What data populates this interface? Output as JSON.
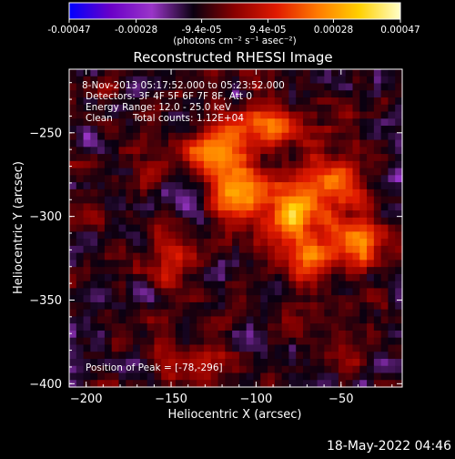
{
  "colorbar": {
    "ticks": [
      "-0.00047",
      "-0.00028",
      "-9.4e-05",
      "9.4e-05",
      "0.00028",
      "0.00047"
    ],
    "tick_values": [
      -0.00047,
      -0.00028,
      -9.4e-05,
      9.4e-05,
      0.00028,
      0.00047
    ],
    "range": [
      -0.00047,
      0.00047
    ],
    "units": "(photons cm⁻² s⁻¹ asec⁻²)"
  },
  "info": {
    "line1": "8-Nov-2013 05:17:52.000 to 05:23:52.000",
    "line2": "Detectors: 3F 4F 5F 6F 7F 8F, Att 0",
    "line3": "Energy Range: 12.0 - 25.0 keV",
    "line4_a": "Clean",
    "line4_b": "Total counts: 1.12E+04",
    "peak": "Position of Peak = [-78,-296]"
  },
  "footer": {
    "date": "18-May-2022 04:46"
  },
  "colors": {
    "background": "#000000",
    "colormap": [
      "#0000ff",
      "#6a00c8",
      "#9a35c8",
      "#0a0010",
      "#8a0000",
      "#e01a00",
      "#ff7a00",
      "#ffd000",
      "#ffffc8"
    ]
  },
  "chart_data": {
    "type": "heatmap",
    "title": "Reconstructed RHESSI Image",
    "xlabel": "Heliocentric X (arcsec)",
    "ylabel": "Heliocentric Y (arcsec)",
    "xlim": [
      -210,
      -14
    ],
    "ylim": [
      -402,
      -212
    ],
    "xticks": [
      -200,
      -150,
      -100,
      -50
    ],
    "yticks": [
      -250,
      -300,
      -350,
      -400
    ],
    "peak": {
      "x": -78,
      "y": -296
    },
    "sources": [
      {
        "x": -78,
        "y": -296,
        "intensity": 0.00047,
        "sx": 10,
        "sy": 12
      },
      {
        "x": -110,
        "y": -285,
        "intensity": 0.00036,
        "sx": 12,
        "sy": 12
      },
      {
        "x": -125,
        "y": -260,
        "intensity": 0.0003,
        "sx": 14,
        "sy": 10
      },
      {
        "x": -95,
        "y": -245,
        "intensity": 0.00026,
        "sx": 16,
        "sy": 8
      },
      {
        "x": -55,
        "y": -280,
        "intensity": 0.00027,
        "sx": 12,
        "sy": 14
      },
      {
        "x": -38,
        "y": -315,
        "intensity": 0.0003,
        "sx": 12,
        "sy": 10
      },
      {
        "x": -70,
        "y": -325,
        "intensity": 0.00024,
        "sx": 14,
        "sy": 10
      },
      {
        "x": -150,
        "y": -325,
        "intensity": 0.00018,
        "sx": 10,
        "sy": 12
      },
      {
        "x": -135,
        "y": -390,
        "intensity": 0.0002,
        "sx": 14,
        "sy": 8
      },
      {
        "x": -160,
        "y": -270,
        "intensity": 0.0001,
        "sx": 10,
        "sy": 10
      }
    ]
  }
}
